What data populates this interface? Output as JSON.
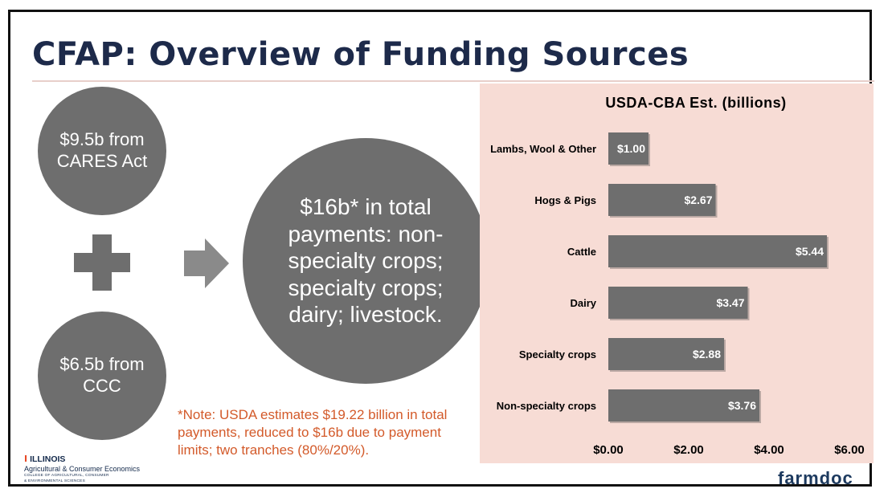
{
  "slide": {
    "title": "CFAP:  Overview of Funding Sources",
    "circles": {
      "cares": "$9.5b from CARES Act",
      "ccc": "$6.5b from CCC",
      "total": "$16b* in total payments: non-specialty crops; specialty crops; dairy; livestock."
    },
    "note": "*Note: USDA estimates $19.22 billion in total payments, reduced to $16b due to payment limits; two tranches (80%/20%).",
    "logos": {
      "illinois_brand": "ILLINOIS",
      "illinois_dept": "Agricultural & Consumer Economics",
      "illinois_college_1": "COLLEGE OF AGRICULTURAL, CONSUMER",
      "illinois_college_2": "& ENVIRONMENTAL SCIENCES",
      "farmdoc": "farmdoc"
    }
  },
  "colors": {
    "title": "#1d2a4a",
    "circle": "#6e6e6e",
    "note": "#d35a2a",
    "chart_bg": "#f7dcd5",
    "bar": "#6e6e6e"
  },
  "chart_data": {
    "type": "bar",
    "orientation": "horizontal",
    "title": "USDA-CBA Est. (billions)",
    "categories": [
      "Lambs, Wool & Other",
      "Hogs & Pigs",
      "Cattle",
      "Dairy",
      "Specialty crops",
      "Non-specialty crops"
    ],
    "values": [
      1.0,
      2.67,
      5.44,
      3.47,
      2.88,
      3.76
    ],
    "data_labels": [
      "$1.00",
      "$2.67",
      "$5.44",
      "$3.47",
      "$2.88",
      "$3.76"
    ],
    "xlim": [
      0,
      6
    ],
    "x_ticks": [
      0,
      2,
      4,
      6
    ],
    "x_tick_labels": [
      "$0.00",
      "$2.00",
      "$4.00",
      "$6.00"
    ],
    "grid": false,
    "legend": "none"
  }
}
